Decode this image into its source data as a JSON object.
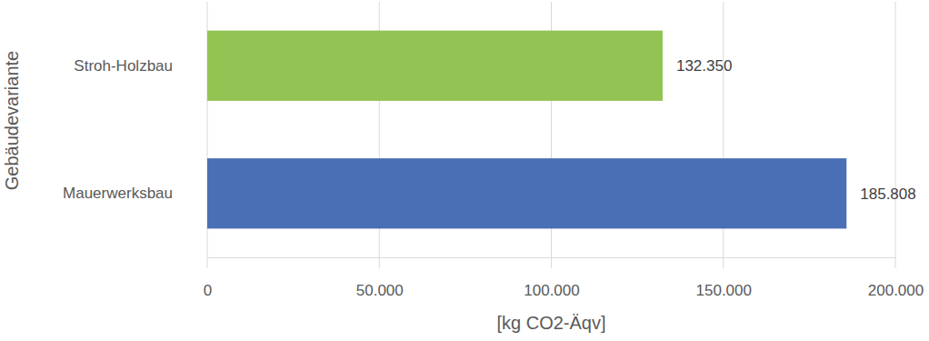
{
  "chart_data": {
    "type": "bar",
    "orientation": "horizontal",
    "x_label": "[kg CO2-Äqv]",
    "y_label": "Gebäudevariante",
    "categories": [
      "Stroh-Holzbau",
      "Mauerwerksbau"
    ],
    "values": [
      132350,
      185808
    ],
    "value_labels": [
      "132.350",
      "185.808"
    ],
    "colors": [
      "#92c353",
      "#4a6fb5"
    ],
    "xlim": [
      0,
      200000
    ],
    "xticks": [
      0,
      {
        "value": 50000,
        "label": "50.000"
      },
      {
        "value": 100000,
        "label": "100.000"
      },
      {
        "value": 150000,
        "label": "150.000"
      },
      {
        "value": 200000,
        "label": "200.000"
      }
    ],
    "grid": true,
    "data_labels": true
  }
}
